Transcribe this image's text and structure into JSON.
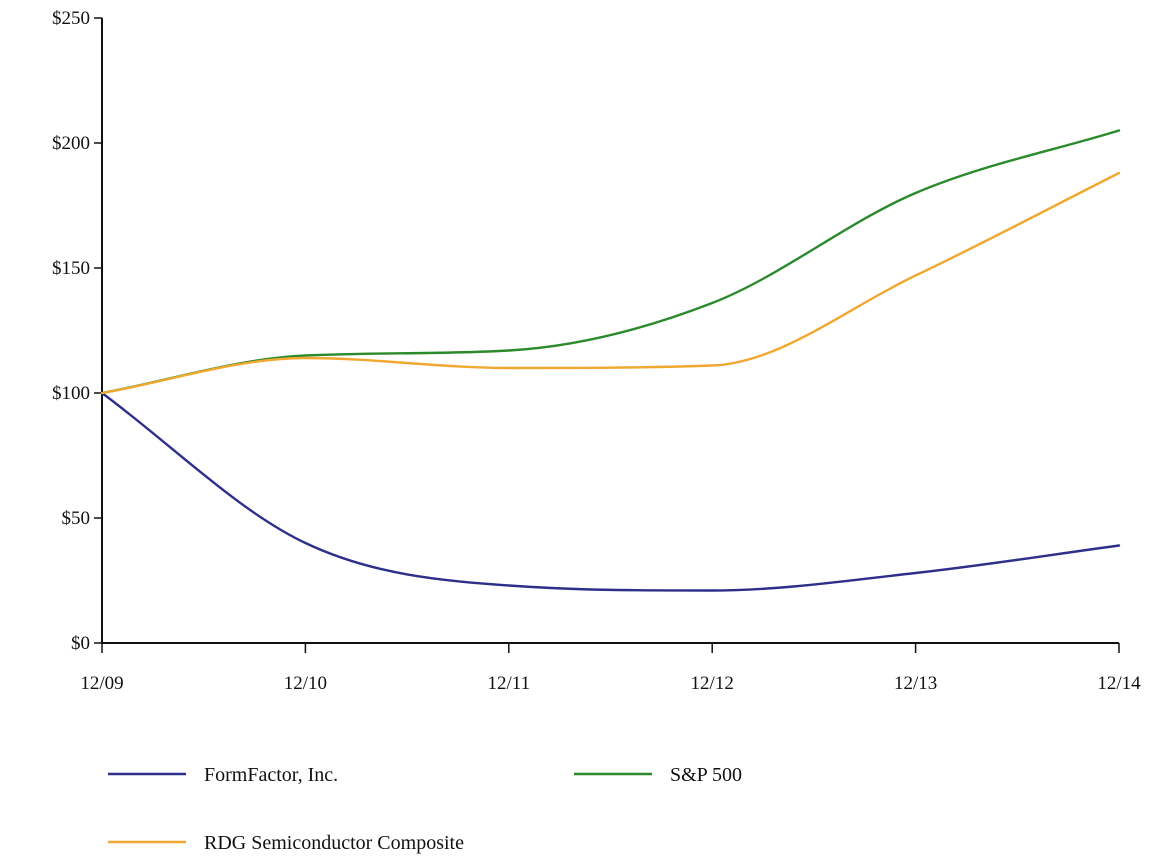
{
  "chart_data": {
    "type": "line",
    "title": "",
    "xlabel": "",
    "ylabel": "",
    "categories": [
      "12/09",
      "12/10",
      "12/11",
      "12/12",
      "12/13",
      "12/14"
    ],
    "y_ticks": [
      "$0",
      "$50",
      "$100",
      "$150",
      "$200",
      "$250"
    ],
    "y_tick_values": [
      0,
      50,
      100,
      150,
      200,
      250
    ],
    "ylim": [
      0,
      250
    ],
    "grid": false,
    "legend_position": "bottom",
    "series": [
      {
        "name": "FormFactor, Inc.",
        "color": "#2e2f8a",
        "values": [
          100,
          40,
          23,
          21,
          28,
          39
        ]
      },
      {
        "name": "S&P 500",
        "color": "#2b8a2b",
        "values": [
          100,
          115,
          117,
          136,
          180,
          205
        ]
      },
      {
        "name": "RDG Semiconductor Composite",
        "color": "#f0a830",
        "values": [
          100,
          114,
          110,
          111,
          147,
          188
        ]
      }
    ]
  }
}
